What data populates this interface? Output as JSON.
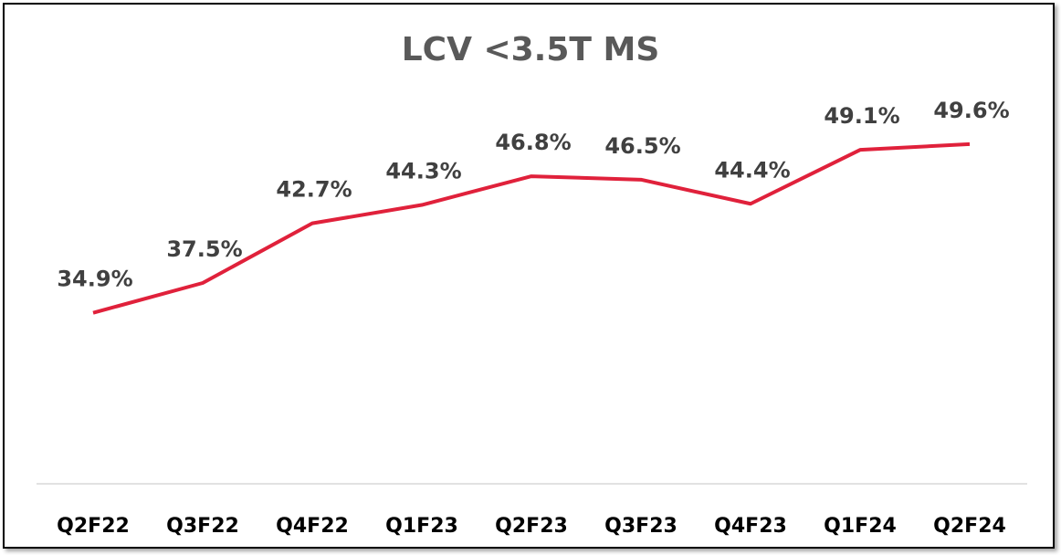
{
  "chart_data": {
    "type": "line",
    "title": "LCV <3.5T MS",
    "categories": [
      "Q2F22",
      "Q3F22",
      "Q4F22",
      "Q1F23",
      "Q2F23",
      "Q3F23",
      "Q4F23",
      "Q1F24",
      "Q2F24"
    ],
    "values": [
      34.9,
      37.5,
      42.7,
      44.3,
      46.8,
      46.5,
      44.4,
      49.1,
      49.6
    ],
    "value_labels": [
      "34.9%",
      "37.5%",
      "42.7%",
      "44.3%",
      "46.8%",
      "46.5%",
      "44.4%",
      "49.1%",
      "49.6%"
    ],
    "color": "#e0213b",
    "ylim": [
      20,
      55
    ],
    "grid": false
  }
}
